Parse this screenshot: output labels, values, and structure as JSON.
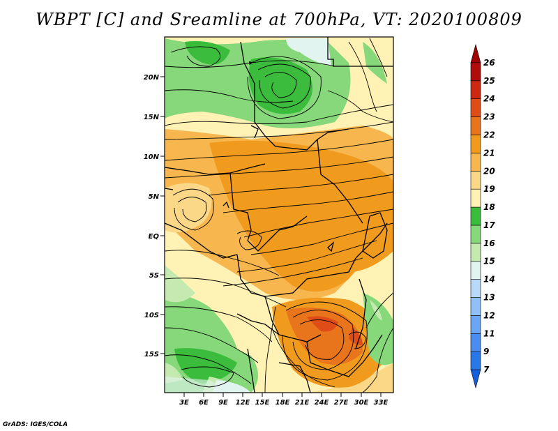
{
  "title": "WBPT [C] and Sreamline at 700hPa, VT: 2020100809",
  "credit": "GrADS: IGES/COLA",
  "map": {
    "lat_ticks": [
      "20N",
      "15N",
      "10N",
      "5N",
      "EQ",
      "5S",
      "10S",
      "15S"
    ],
    "lon_ticks": [
      "3E",
      "6E",
      "9E",
      "12E",
      "15E",
      "18E",
      "21E",
      "24E",
      "27E",
      "30E",
      "33E"
    ]
  },
  "colorbar": {
    "levels": [
      "7",
      "9",
      "11",
      "12",
      "13",
      "14",
      "15",
      "16",
      "17",
      "18",
      "19",
      "20",
      "21",
      "22",
      "23",
      "24",
      "25",
      "26"
    ],
    "colors": [
      "#1560d8",
      "#2a78e6",
      "#4a8cf0",
      "#6aa6f4",
      "#90c0f8",
      "#b8daf8",
      "#e2f4f0",
      "#c4eab0",
      "#86d87a",
      "#3cbc3c",
      "#fff2b4",
      "#fbd888",
      "#f7b74e",
      "#f09a1e",
      "#e8741c",
      "#e04c18",
      "#cc2812",
      "#b00c0c",
      "#a00000"
    ]
  }
}
